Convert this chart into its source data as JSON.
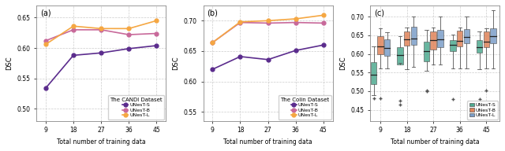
{
  "x_vals": [
    9,
    18,
    27,
    36,
    45
  ],
  "panel_a": {
    "title": "The CANDI Dataset",
    "label": "(a)",
    "ylim": [
      0.48,
      0.67
    ],
    "yticks": [
      0.5,
      0.55,
      0.6,
      0.65
    ],
    "UNesT_S": [
      0.534,
      0.588,
      0.592,
      0.599,
      0.604
    ],
    "UNesT_B": [
      0.612,
      0.63,
      0.63,
      0.622,
      0.624
    ],
    "UNesT_L": [
      0.606,
      0.636,
      0.632,
      0.632,
      0.645
    ]
  },
  "panel_b": {
    "title": "The Colin Dataset",
    "label": "(b)",
    "ylim": [
      0.535,
      0.725
    ],
    "yticks": [
      0.55,
      0.6,
      0.65,
      0.7
    ],
    "UNesT_S": [
      0.62,
      0.641,
      0.636,
      0.651,
      0.66
    ],
    "UNesT_B": [
      0.664,
      0.697,
      0.696,
      0.697,
      0.696
    ],
    "UNesT_L": [
      0.664,
      0.698,
      0.7,
      0.703,
      0.709
    ]
  },
  "panel_c": {
    "label": "(c)",
    "ylim": [
      0.42,
      0.73
    ],
    "yticks": [
      0.45,
      0.5,
      0.55,
      0.6,
      0.65,
      0.7
    ],
    "UNesT_S_median": [
      0.545,
      0.598,
      0.608,
      0.625,
      0.618
    ],
    "UNesT_S_q1": [
      0.518,
      0.572,
      0.58,
      0.608,
      0.603
    ],
    "UNesT_S_q3": [
      0.578,
      0.618,
      0.632,
      0.636,
      0.636
    ],
    "UNesT_S_whislo": [
      0.49,
      0.575,
      0.555,
      0.562,
      0.56
    ],
    "UNesT_S_whishi": [
      0.62,
      0.648,
      0.665,
      0.652,
      0.66
    ],
    "UNesT_S_fliers": [
      [
        0.48
      ],
      [
        0.474,
        0.463
      ],
      [
        0.5,
        0.502
      ],
      [
        0.478
      ],
      [
        0.478
      ]
    ],
    "UNesT_B_median": [
      0.62,
      0.64,
      0.638,
      0.635,
      0.632
    ],
    "UNesT_B_q1": [
      0.6,
      0.622,
      0.612,
      0.62,
      0.618
    ],
    "UNesT_B_q3": [
      0.648,
      0.66,
      0.66,
      0.662,
      0.66
    ],
    "UNesT_B_whislo": [
      0.562,
      0.56,
      0.572,
      0.562,
      0.562
    ],
    "UNesT_B_whishi": [
      0.668,
      0.67,
      0.67,
      0.67,
      0.668
    ],
    "UNesT_B_fliers": [
      [
        0.48
      ],
      [],
      [],
      [],
      [
        0.502
      ]
    ],
    "UNesT_L_median": [
      0.615,
      0.642,
      0.64,
      0.645,
      0.648
    ],
    "UNesT_L_q1": [
      0.595,
      0.625,
      0.618,
      0.628,
      0.628
    ],
    "UNesT_L_q3": [
      0.64,
      0.672,
      0.665,
      0.666,
      0.668
    ],
    "UNesT_L_whislo": [
      0.562,
      0.565,
      0.572,
      0.562,
      0.562
    ],
    "UNesT_L_whishi": [
      0.658,
      0.7,
      0.7,
      0.7,
      0.718
    ],
    "UNesT_L_fliers": [
      [],
      [],
      [],
      [],
      []
    ]
  },
  "line_colors": {
    "UNesT_S": "#5b2c8d",
    "UNesT_B": "#c8699a",
    "UNesT_L": "#f5a742"
  },
  "box_colors": {
    "UNesT_S": "#4daa8f",
    "UNesT_B": "#e0845a",
    "UNesT_L": "#7b9ec8"
  },
  "xlabel": "Total number of training data",
  "ylabel": "DSC",
  "legend_labels": [
    "UNesT-S",
    "UNesT-B",
    "UNesT-L"
  ],
  "bg_color": "#ffffff"
}
